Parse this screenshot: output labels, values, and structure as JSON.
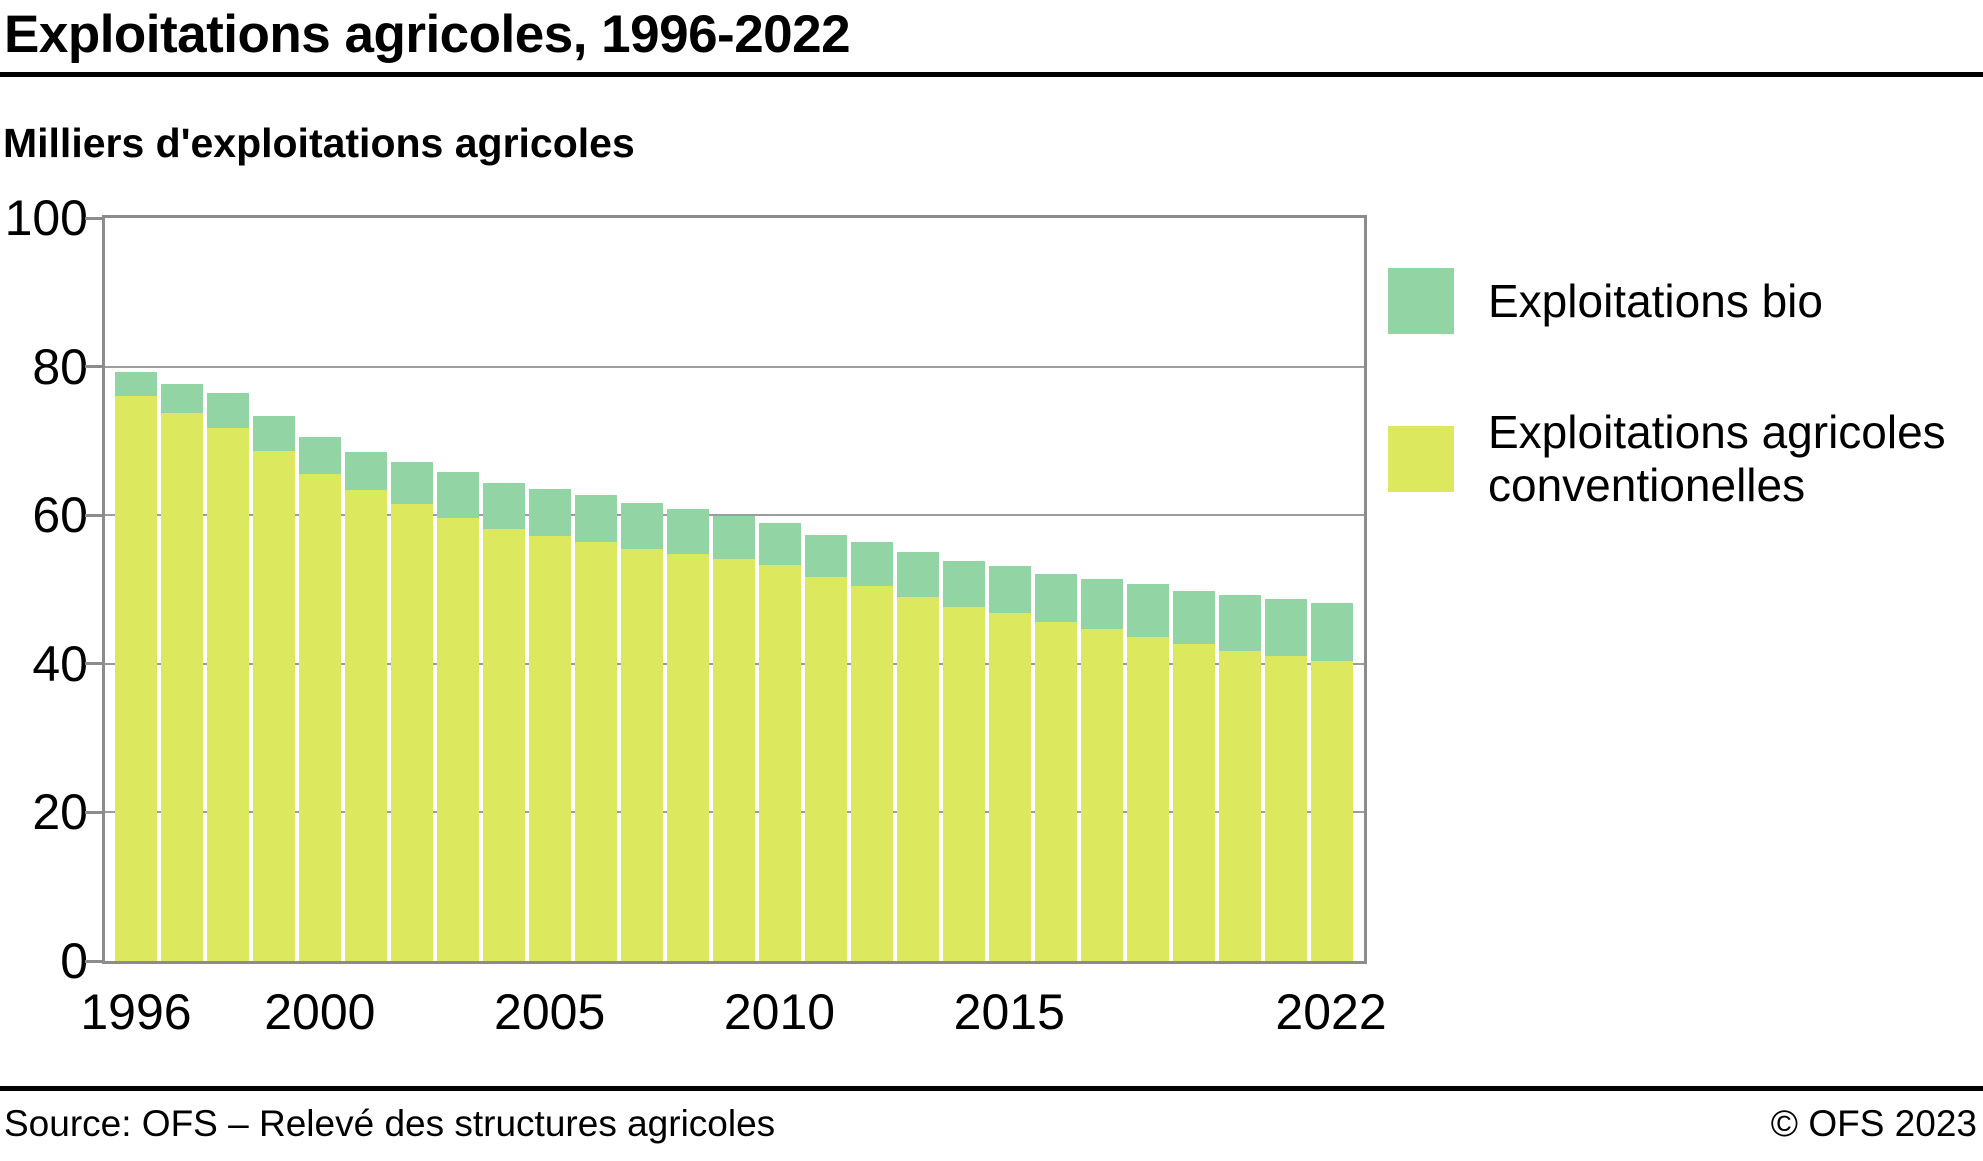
{
  "header": {
    "title": "Exploitations agricoles, 1996-2022",
    "subtitle": "Milliers d'exploitations agricoles"
  },
  "legend": {
    "items": [
      {
        "label": "Exploitations bio",
        "color": "#92d4a4"
      },
      {
        "label": "Exploitations agricoles\nconventionelles",
        "color": "#dce95f"
      }
    ]
  },
  "footer": {
    "source": "Source: OFS – Relevé des structures agricoles",
    "copyright": "© OFS 2023"
  },
  "colors": {
    "bio": "#92d4a4",
    "conventional": "#dce95f",
    "frame": "#8c8c8c",
    "gridline": "#9c9c9c",
    "text": "#000000",
    "rule": "#000000"
  },
  "chart_data": {
    "type": "bar",
    "stacked": true,
    "title": "Exploitations agricoles, 1996-2022",
    "ylabel": "Milliers d'exploitations agricoles",
    "xlabel": "",
    "ylim": [
      0,
      100
    ],
    "y_ticks": [
      0,
      20,
      40,
      60,
      80,
      100
    ],
    "grid": true,
    "legend_position": "right",
    "categories": [
      1996,
      1997,
      1998,
      1999,
      2000,
      2001,
      2002,
      2003,
      2004,
      2005,
      2006,
      2007,
      2008,
      2009,
      2010,
      2011,
      2012,
      2013,
      2014,
      2015,
      2016,
      2017,
      2018,
      2019,
      2020,
      2021,
      2022
    ],
    "series": [
      {
        "name": "Exploitations agricoles conventionelles",
        "color": "#dce95f",
        "values": [
          76.1,
          73.7,
          71.8,
          68.6,
          65.6,
          63.4,
          61.5,
          59.6,
          58.1,
          57.2,
          56.4,
          55.4,
          54.8,
          54.1,
          53.3,
          51.7,
          50.5,
          49.0,
          47.7,
          46.8,
          45.6,
          44.7,
          43.6,
          42.6,
          41.7,
          41.1,
          40.4
        ]
      },
      {
        "name": "Exploitations bio",
        "color": "#92d4a4",
        "values": [
          3.2,
          4.0,
          4.6,
          4.8,
          4.9,
          5.1,
          5.6,
          6.2,
          6.3,
          6.3,
          6.3,
          6.2,
          6.0,
          5.8,
          5.6,
          5.7,
          5.9,
          6.0,
          6.1,
          6.4,
          6.5,
          6.7,
          7.1,
          7.2,
          7.5,
          7.6,
          7.8
        ]
      }
    ],
    "x_tick_labels": [
      {
        "index": 0,
        "label": "1996"
      },
      {
        "index": 4,
        "label": "2000"
      },
      {
        "index": 9,
        "label": "2005"
      },
      {
        "index": 14,
        "label": "2010"
      },
      {
        "index": 19,
        "label": "2015"
      },
      {
        "index": 26,
        "label": "2022"
      }
    ]
  }
}
